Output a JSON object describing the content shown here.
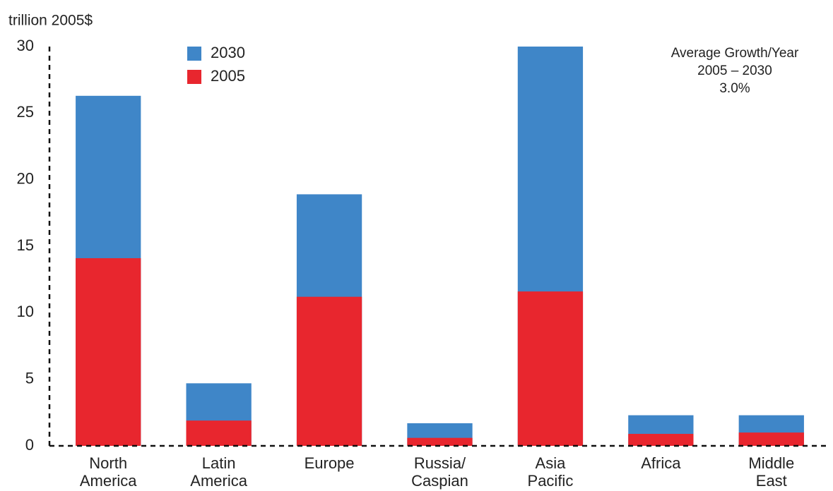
{
  "chart_data": {
    "type": "bar",
    "overlap": true,
    "y_label": "trillion 2005$",
    "annotation": [
      "Average Growth/Year",
      "2005 – 2030",
      "3.0%"
    ],
    "categories": [
      "North\nAmerica",
      "Latin\nAmerica",
      "Europe",
      "Russia/\nCaspian",
      "Asia\nPacific",
      "Africa",
      "Middle\nEast"
    ],
    "series": [
      {
        "name": "2030",
        "color": "#3f86c8",
        "values": [
          26.3,
          4.7,
          18.9,
          1.7,
          30.0,
          2.3,
          2.3
        ]
      },
      {
        "name": "2005",
        "color": "#e8262e",
        "values": [
          14.1,
          1.9,
          11.2,
          0.6,
          11.6,
          0.9,
          1.0
        ]
      }
    ],
    "ylim": [
      0,
      30
    ],
    "yticks": [
      0,
      5,
      10,
      15,
      20,
      25,
      30
    ],
    "grid": false,
    "legend": "top-left"
  }
}
